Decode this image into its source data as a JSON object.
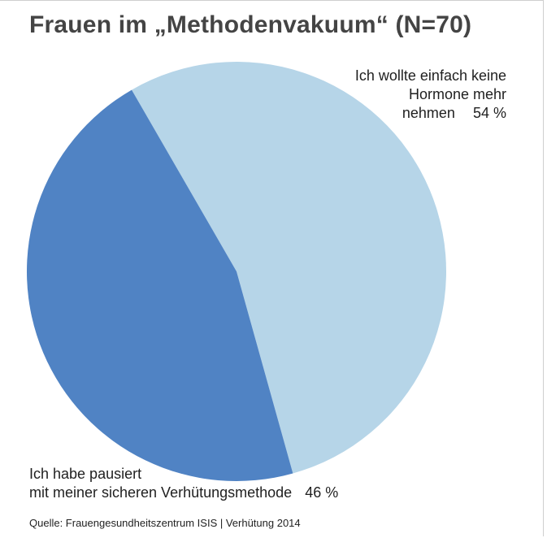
{
  "title": "Frauen im „Methodenvakuum“ (N=70)",
  "source": "Quelle: Frauengesundheitszentrum ISIS | Verhütung 2014",
  "chart_data": {
    "type": "pie",
    "title": "Frauen im „Methodenvakuum“ (N=70)",
    "slices": [
      {
        "label_lines": [
          "Ich wollte einfach keine",
          "Hormone mehr",
          "nehmen"
        ],
        "value": 54,
        "value_label": "54 %",
        "color": "#b6d5e8"
      },
      {
        "label_lines": [
          "Ich habe pausiert",
          "mit meiner sicheren Verhütungsmethode"
        ],
        "value": 46,
        "value_label": "46 %",
        "color": "#5083c4"
      }
    ],
    "start_angle_deg": -30,
    "direction": "clockwise"
  }
}
